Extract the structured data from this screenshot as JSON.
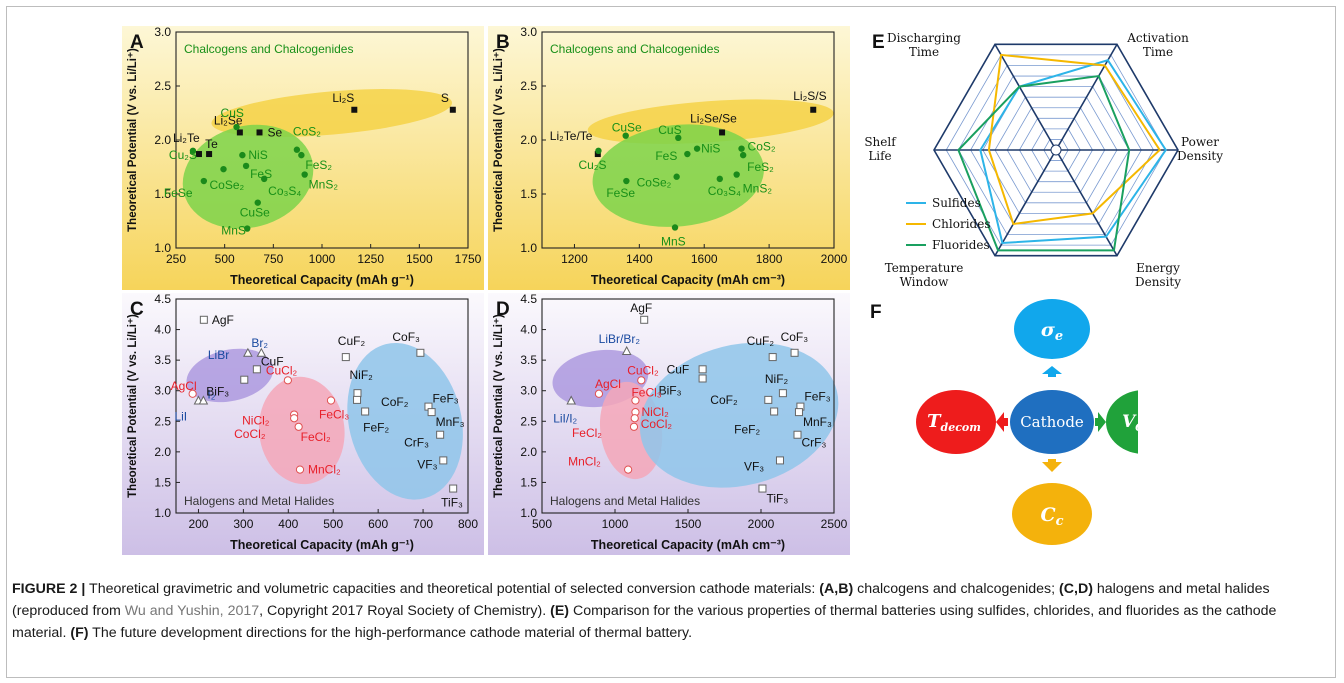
{
  "figure": {
    "caption": {
      "label": "FIGURE 2 |",
      "t1": " Theoretical gravimetric and volumetric capacities and theoretical potential of selected conversion cathode materials: ",
      "b1": "(A,B)",
      "t2": " chalcogens and chalcogenides; ",
      "b2": "(C,D)",
      "t3": " halogens and metal halides (reproduced from ",
      "ref": "Wu and Yushin, 2017",
      "t4": ", Copyright 2017 Royal Society of Chemistry). ",
      "b3": "(E)",
      "t5": " Comparison for the various properties of thermal batteries using sulfides, chlorides, and fluorides as the cathode material. ",
      "b4": "(F)",
      "t6": " The future development directions for the high-performance cathode material of thermal battery."
    },
    "colors": {
      "chalcogen_bg_top": "#fdf7d6",
      "chalcogen_bg_bottom": "#f6d45a",
      "halide_bg_top": "#fbf9fd",
      "halide_bg_bottom": "#cdbfe6",
      "green_point": "#1b8a1b",
      "green_label": "#189018",
      "red_label": "#e8202a",
      "blue_label": "#1a4aa0",
      "sulfides": "#2db4e8",
      "chlorides": "#f5b800",
      "fluorides": "#1aa060",
      "sigma": "#11a7ec",
      "voc": "#20a23a",
      "cc": "#f4b20c",
      "tdecom": "#ee1c1c",
      "cathode": "#1f6fc0"
    }
  },
  "chart_data": [
    {
      "panel": "A",
      "type": "scatter",
      "title": "Chalcogens and Chalcogenides",
      "xlabel": "Theoretical Capacity (mAh g⁻¹)",
      "ylabel": "Theoretical Potential (V vs. Li/Li⁺)",
      "xlim": [
        250,
        1750
      ],
      "ylim": [
        1.0,
        3.0
      ],
      "xticks": [
        "250",
        "500",
        "750",
        "1000",
        "1250",
        "1500",
        "1750"
      ],
      "yticks": [
        "1.0",
        "1.5",
        "2.0",
        "2.5",
        "3.0"
      ],
      "points": [
        {
          "label": "Li₂S",
          "x": 1166,
          "y": 2.28,
          "kind": "black"
        },
        {
          "label": "S",
          "x": 1672,
          "y": 2.28,
          "kind": "black"
        },
        {
          "label": "Li₂Te",
          "x": 368,
          "y": 1.87,
          "kind": "black"
        },
        {
          "label": "Te",
          "x": 420,
          "y": 1.87,
          "kind": "black"
        },
        {
          "label": "Li₂Se",
          "x": 578,
          "y": 2.07,
          "kind": "black"
        },
        {
          "label": "Se",
          "x": 679,
          "y": 2.07,
          "kind": "black"
        },
        {
          "label": "CuS",
          "x": 561,
          "y": 2.12,
          "kind": "green"
        },
        {
          "label": "Cu₂S",
          "x": 337,
          "y": 1.9,
          "kind": "green"
        },
        {
          "label": "NiS",
          "x": 591,
          "y": 1.86,
          "kind": "green"
        },
        {
          "label": "FeS",
          "x": 610,
          "y": 1.76,
          "kind": "green"
        },
        {
          "label": "CoS₂",
          "x": 871,
          "y": 1.91,
          "kind": "green"
        },
        {
          "label": "FeS₂",
          "x": 894,
          "y": 1.86,
          "kind": "green"
        },
        {
          "label": "MnS₂",
          "x": 911,
          "y": 1.68,
          "kind": "green"
        },
        {
          "label": "Co₃S₄",
          "x": 703,
          "y": 1.64,
          "kind": "green"
        },
        {
          "label": "FeSe",
          "x": 393,
          "y": 1.62,
          "kind": "green"
        },
        {
          "label": "CoSe₂",
          "x": 494,
          "y": 1.73,
          "kind": "green"
        },
        {
          "label": "CuSe",
          "x": 670,
          "y": 1.42,
          "kind": "green"
        },
        {
          "label": "MnS",
          "x": 616,
          "y": 1.18,
          "kind": "green"
        }
      ]
    },
    {
      "panel": "B",
      "type": "scatter",
      "title": "Chalcogens and Chalcogenides",
      "xlabel": "Theoretical Capacity (mAh cm⁻³)",
      "ylabel": "Theoretical Potential (V vs. Li/Li⁺)",
      "xlim": [
        1100,
        2000
      ],
      "ylim": [
        1.0,
        3.0
      ],
      "xticks": [
        "1200",
        "1400",
        "1600",
        "1800",
        "2000"
      ],
      "yticks": [
        "1.0",
        "1.5",
        "2.0",
        "2.5",
        "3.0"
      ],
      "points": [
        {
          "label": "Li₂S/S",
          "x": 1936,
          "y": 2.28,
          "kind": "black"
        },
        {
          "label": "Li₂Te/Te",
          "x": 1272,
          "y": 1.87,
          "kind": "black"
        },
        {
          "label": "Li₂Se/Se",
          "x": 1655,
          "y": 2.07,
          "kind": "black"
        },
        {
          "label": "CuS",
          "x": 1520,
          "y": 2.02,
          "kind": "green"
        },
        {
          "label": "CuSe",
          "x": 1358,
          "y": 2.04,
          "kind": "green"
        },
        {
          "label": "Cu₂S",
          "x": 1274,
          "y": 1.9,
          "kind": "green"
        },
        {
          "label": "FeS",
          "x": 1548,
          "y": 1.87,
          "kind": "green"
        },
        {
          "label": "NiS",
          "x": 1578,
          "y": 1.92,
          "kind": "green"
        },
        {
          "label": "CoS₂",
          "x": 1715,
          "y": 1.92,
          "kind": "green"
        },
        {
          "label": "FeS₂",
          "x": 1720,
          "y": 1.86,
          "kind": "green"
        },
        {
          "label": "MnS₂",
          "x": 1700,
          "y": 1.68,
          "kind": "green"
        },
        {
          "label": "CoSe₂",
          "x": 1515,
          "y": 1.66,
          "kind": "green"
        },
        {
          "label": "Co₃S₄",
          "x": 1648,
          "y": 1.64,
          "kind": "green"
        },
        {
          "label": "FeSe",
          "x": 1360,
          "y": 1.62,
          "kind": "green"
        },
        {
          "label": "MnS",
          "x": 1510,
          "y": 1.19,
          "kind": "green"
        }
      ]
    },
    {
      "panel": "C",
      "type": "scatter",
      "title": "Halogens and Metal Halides",
      "xlabel": "Theoretical Capacity (mAh g⁻¹)",
      "ylabel": "Theoretical Potential (V vs. Li/Li⁺)",
      "xlim": [
        150,
        800
      ],
      "ylim": [
        1.0,
        4.5
      ],
      "xticks": [
        "200",
        "300",
        "400",
        "500",
        "600",
        "700",
        "800"
      ],
      "yticks": [
        "1.0",
        "1.5",
        "2.0",
        "2.5",
        "3.0",
        "3.5",
        "4.0",
        "4.5"
      ],
      "points": [
        {
          "label": "AgF",
          "x": 212,
          "y": 4.16,
          "kind": "gray-square"
        },
        {
          "label": "LiBr",
          "x": 310,
          "y": 3.62,
          "kind": "triangle"
        },
        {
          "label": "Br₂",
          "x": 340,
          "y": 3.62,
          "kind": "triangle"
        },
        {
          "label": "LiI",
          "x": 200,
          "y": 2.84,
          "kind": "triangle"
        },
        {
          "label": "I₂",
          "x": 211,
          "y": 2.84,
          "kind": "triangle"
        },
        {
          "label": "AgCl",
          "x": 187,
          "y": 2.95,
          "kind": "red-circle"
        },
        {
          "label": "CuF",
          "x": 330,
          "y": 3.35,
          "kind": "gray-square"
        },
        {
          "label": "BiF₃",
          "x": 302,
          "y": 3.18,
          "kind": "gray-square"
        },
        {
          "label": "CuCl₂",
          "x": 399,
          "y": 3.17,
          "kind": "red-circle"
        },
        {
          "label": "CuF₂",
          "x": 528,
          "y": 3.55,
          "kind": "gray-square"
        },
        {
          "label": "CoF₃",
          "x": 694,
          "y": 3.62,
          "kind": "gray-square"
        },
        {
          "label": "NiF₂",
          "x": 554,
          "y": 2.96,
          "kind": "gray-square"
        },
        {
          "label": "FeCl₃",
          "x": 495,
          "y": 2.84,
          "kind": "red-circle"
        },
        {
          "label": "CoF₂",
          "x": 553,
          "y": 2.85,
          "kind": "gray-square"
        },
        {
          "label": "FeF₂",
          "x": 571,
          "y": 2.66,
          "kind": "gray-square"
        },
        {
          "label": "NiCl₂",
          "x": 413,
          "y": 2.61,
          "kind": "red-circle"
        },
        {
          "label": "CoCl₂",
          "x": 413,
          "y": 2.55,
          "kind": "red-circle"
        },
        {
          "label": "FeCl₂",
          "x": 423,
          "y": 2.41,
          "kind": "red-circle"
        },
        {
          "label": "FeF₃",
          "x": 712,
          "y": 2.74,
          "kind": "gray-square"
        },
        {
          "label": "MnF₃",
          "x": 719,
          "y": 2.65,
          "kind": "gray-square"
        },
        {
          "label": "CrF₃",
          "x": 738,
          "y": 2.28,
          "kind": "gray-square"
        },
        {
          "label": "MnCl₂",
          "x": 426,
          "y": 1.71,
          "kind": "red-circle"
        },
        {
          "label": "VF₃",
          "x": 745,
          "y": 1.86,
          "kind": "gray-square"
        },
        {
          "label": "TiF₃",
          "x": 767,
          "y": 1.4,
          "kind": "gray-square"
        }
      ]
    },
    {
      "panel": "D",
      "type": "scatter",
      "title": "Halogens and Metal Halides",
      "xlabel": "Theoretical Capacity (mAh cm⁻³)",
      "ylabel": "Theoretical Potential (V vs. Li/Li⁺)",
      "xlim": [
        500,
        2500
      ],
      "ylim": [
        1.0,
        4.5
      ],
      "xticks": [
        "500",
        "1000",
        "1500",
        "2000",
        "2500"
      ],
      "yticks": [
        "1.0",
        "1.5",
        "2.0",
        "2.5",
        "3.0",
        "3.5",
        "4.0",
        "4.5"
      ],
      "points": [
        {
          "label": "AgF",
          "x": 1200,
          "y": 4.16,
          "kind": "gray-square"
        },
        {
          "label": "LiBr/Br₂",
          "x": 1080,
          "y": 3.65,
          "kind": "triangle"
        },
        {
          "label": "LiI/I₂",
          "x": 700,
          "y": 2.84,
          "kind": "triangle"
        },
        {
          "label": "AgCl",
          "x": 890,
          "y": 2.95,
          "kind": "red-circle"
        },
        {
          "label": "CuCl₂",
          "x": 1180,
          "y": 3.17,
          "kind": "red-circle"
        },
        {
          "label": "CuF",
          "x": 1600,
          "y": 3.35,
          "kind": "gray-square"
        },
        {
          "label": "BiF₃",
          "x": 1600,
          "y": 3.2,
          "kind": "gray-square"
        },
        {
          "label": "FeCl₃",
          "x": 1140,
          "y": 2.84,
          "kind": "red-circle"
        },
        {
          "label": "NiCl₂",
          "x": 1140,
          "y": 2.65,
          "kind": "red-circle"
        },
        {
          "label": "CoCl₂",
          "x": 1135,
          "y": 2.55,
          "kind": "red-circle"
        },
        {
          "label": "FeCl₂",
          "x": 1130,
          "y": 2.41,
          "kind": "red-circle"
        },
        {
          "label": "MnCl₂",
          "x": 1090,
          "y": 1.71,
          "kind": "red-circle"
        },
        {
          "label": "CuF₂",
          "x": 2080,
          "y": 3.55,
          "kind": "gray-square"
        },
        {
          "label": "CoF₃",
          "x": 2230,
          "y": 3.62,
          "kind": "gray-square"
        },
        {
          "label": "NiF₂",
          "x": 2150,
          "y": 2.96,
          "kind": "gray-square"
        },
        {
          "label": "CoF₂",
          "x": 2050,
          "y": 2.85,
          "kind": "gray-square"
        },
        {
          "label": "FeF₃",
          "x": 2270,
          "y": 2.74,
          "kind": "gray-square"
        },
        {
          "label": "MnF₃",
          "x": 2260,
          "y": 2.65,
          "kind": "gray-square"
        },
        {
          "label": "FeF₂",
          "x": 2090,
          "y": 2.66,
          "kind": "gray-square"
        },
        {
          "label": "CrF₃",
          "x": 2250,
          "y": 2.28,
          "kind": "gray-square"
        },
        {
          "label": "VF₃",
          "x": 2130,
          "y": 1.86,
          "kind": "gray-square"
        },
        {
          "label": "TiF₃",
          "x": 2010,
          "y": 1.4,
          "kind": "gray-square"
        }
      ]
    },
    {
      "panel": "E",
      "type": "radar",
      "axes": [
        "Activation Time",
        "Power Density",
        "Energy Density",
        "Temperature Window",
        "Shelf Life",
        "Discharging Time"
      ],
      "axis_lines": [
        [
          "Activation",
          "Time"
        ],
        [
          "Power",
          "Density"
        ],
        [
          "Energy",
          "Density"
        ],
        [
          "Temperature",
          "Window"
        ],
        [
          "Shelf",
          "Life"
        ],
        [
          "Discharging",
          "Time"
        ]
      ],
      "rings": 10,
      "series": [
        {
          "name": "Sulfides",
          "color": "#2db4e8",
          "values": [
            0.85,
            0.9,
            0.82,
            0.88,
            0.62,
            0.6
          ]
        },
        {
          "name": "Chlorides",
          "color": "#f5b800",
          "values": [
            0.8,
            0.85,
            0.6,
            0.7,
            0.55,
            0.9
          ]
        },
        {
          "name": "Fluorides",
          "color": "#1aa060",
          "values": [
            0.7,
            0.6,
            0.95,
            0.95,
            0.8,
            0.6
          ]
        }
      ]
    }
  ],
  "panel_f": {
    "letter": "F",
    "center": "Cathode",
    "top": "σe",
    "right": "VOCV",
    "bottom": "Cc",
    "left": "Tdecom"
  },
  "panel_letters": [
    "A",
    "B",
    "C",
    "D",
    "E"
  ]
}
